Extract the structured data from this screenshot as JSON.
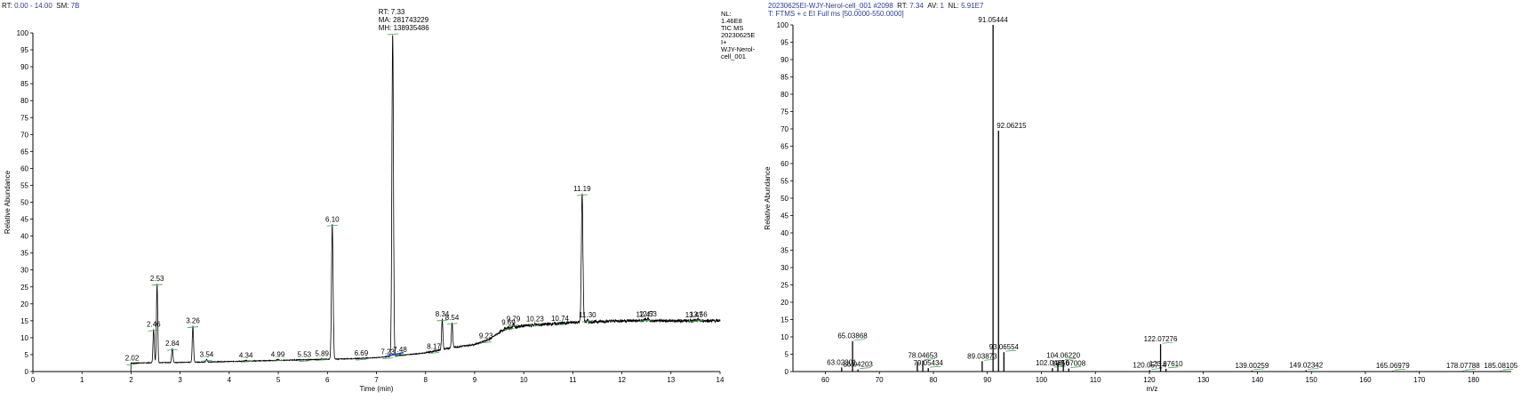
{
  "header_left": {
    "rt_label": "RT:",
    "rt_value": "0.00 - 14.00",
    "sm_label": "SM:",
    "sm_value": "7B"
  },
  "header_right": {
    "line1_file": "20230625EI-WJY-Nerol-cell_001 #2098",
    "line1_rt_label": "RT:",
    "line1_rt": "7.34",
    "line1_av_label": "AV:",
    "line1_av": "1",
    "line1_nl_label": "NL:",
    "line1_nl": "5.91E7",
    "line2": "T: FTMS + c EI Full ms [50.0000-550.0000]"
  },
  "chart_data": [
    {
      "type": "line",
      "name": "tic-chromatogram",
      "xlabel": "Time (min)",
      "ylabel": "Relative Abundance",
      "xlim": [
        0,
        14
      ],
      "ylim": [
        0,
        100
      ],
      "xticks": [
        "0",
        "1",
        "2",
        "3",
        "4",
        "5",
        "6",
        "7",
        "8",
        "9",
        "10",
        "11",
        "12",
        "13",
        "14"
      ],
      "yticks": [
        "0",
        "5",
        "10",
        "15",
        "20",
        "25",
        "30",
        "35",
        "40",
        "45",
        "50",
        "55",
        "60",
        "65",
        "70",
        "75",
        "80",
        "85",
        "90",
        "95",
        "100"
      ],
      "info_block": [
        "NL:",
        "1.46E8",
        "TIC  MS",
        "20230625E",
        "I+",
        "WJY-Nerol-",
        "cell_001"
      ],
      "apex_annotation": [
        "RT: 7.33",
        "MA: 281743229",
        "MH: 138935486"
      ],
      "baseline": [
        [
          2.0,
          2.5
        ],
        [
          3.5,
          2.8
        ],
        [
          5.0,
          3.3
        ],
        [
          6.5,
          3.8
        ],
        [
          7.0,
          4.1
        ],
        [
          8.0,
          5.5
        ],
        [
          8.5,
          7.0
        ],
        [
          9.0,
          8.0
        ],
        [
          9.3,
          9.5
        ],
        [
          9.6,
          12.5
        ],
        [
          10.0,
          13.5
        ],
        [
          11.0,
          14.5
        ],
        [
          12.0,
          15.0
        ],
        [
          14.0,
          15.0
        ]
      ],
      "peaks": [
        {
          "rt": 2.02,
          "label": "2.02",
          "height": 2.5
        },
        {
          "rt": 2.46,
          "label": "2.46",
          "height": 12.5
        },
        {
          "rt": 2.53,
          "label": "2.53",
          "height": 26
        },
        {
          "rt": 2.84,
          "label": "2.84",
          "height": 6.8
        },
        {
          "rt": 3.26,
          "label": "3.26",
          "height": 13.5
        },
        {
          "rt": 3.54,
          "label": "3.54",
          "height": 3.6
        },
        {
          "rt": 4.34,
          "label": "4.34",
          "height": 3.3
        },
        {
          "rt": 4.99,
          "label": "4.99",
          "height": 3.6
        },
        {
          "rt": 5.53,
          "label": "5.53",
          "height": 3.5
        },
        {
          "rt": 5.89,
          "label": "5.89",
          "height": 3.8
        },
        {
          "rt": 6.1,
          "label": "6.10",
          "height": 43.5
        },
        {
          "rt": 6.69,
          "label": "6.69",
          "height": 3.9
        },
        {
          "rt": 7.23,
          "label": "7.23",
          "height": 4.3
        },
        {
          "rt": 7.33,
          "label": "",
          "height": 100
        },
        {
          "rt": 7.48,
          "label": "7.48",
          "height": 5.0
        },
        {
          "rt": 8.17,
          "label": "8.17",
          "height": 5.9
        },
        {
          "rt": 8.34,
          "label": "8.34",
          "height": 15.5
        },
        {
          "rt": 8.54,
          "label": "8.54",
          "height": 14.5
        },
        {
          "rt": 9.23,
          "label": "9.23",
          "height": 9.0
        },
        {
          "rt": 9.69,
          "label": "9.69",
          "height": 13.0
        },
        {
          "rt": 9.79,
          "label": "9.79",
          "height": 14.0
        },
        {
          "rt": 10.23,
          "label": "10.23",
          "height": 14.0
        },
        {
          "rt": 10.74,
          "label": "10.74",
          "height": 14.2
        },
        {
          "rt": 11.19,
          "label": "11.19",
          "height": 52.5
        },
        {
          "rt": 11.3,
          "label": "11.30",
          "height": 15.2
        },
        {
          "rt": 12.47,
          "label": "12.47",
          "height": 15.4
        },
        {
          "rt": 12.53,
          "label": "12.53",
          "height": 15.5
        },
        {
          "rt": 13.47,
          "label": "13.47",
          "height": 15.2
        },
        {
          "rt": 13.56,
          "label": "13.56",
          "height": 15.4
        }
      ]
    },
    {
      "type": "bar",
      "name": "mass-spectrum",
      "xlabel": "m/z",
      "ylabel": "Relative Abundance",
      "xlim": [
        54,
        187
      ],
      "ylim": [
        0,
        100
      ],
      "xticks": [
        "60",
        "70",
        "80",
        "90",
        "100",
        "110",
        "120",
        "130",
        "140",
        "150",
        "160",
        "170",
        "180"
      ],
      "yticks": [
        "0",
        "5",
        "10",
        "15",
        "20",
        "25",
        "30",
        "35",
        "40",
        "45",
        "50",
        "55",
        "60",
        "65",
        "70",
        "75",
        "80",
        "85",
        "90",
        "95",
        "100"
      ],
      "peaks": [
        {
          "mz": 63.02301,
          "label": "63.02301",
          "intensity": 1.2
        },
        {
          "mz": 65.03868,
          "label": "65.03868",
          "intensity": 8.8
        },
        {
          "mz": 66.04203,
          "label": "66.04203",
          "intensity": 0.6
        },
        {
          "mz": 77.03,
          "label": "",
          "intensity": 2.7
        },
        {
          "mz": 78.04653,
          "label": "78.04653",
          "intensity": 3.2
        },
        {
          "mz": 79.05434,
          "label": "79.05434",
          "intensity": 1.0
        },
        {
          "mz": 89.03873,
          "label": "89.03873",
          "intensity": 3.0
        },
        {
          "mz": 91.05444,
          "label": "91.05444",
          "intensity": 100
        },
        {
          "mz": 92.06215,
          "label": "92.06215",
          "intensity": 69.5
        },
        {
          "mz": 93.06554,
          "label": "93.06554",
          "intensity": 5.6
        },
        {
          "mz": 102.04656,
          "label": "102.04656",
          "intensity": 1.0
        },
        {
          "mz": 103.05,
          "label": "",
          "intensity": 2.6
        },
        {
          "mz": 104.0622,
          "label": "104.06220",
          "intensity": 3.2
        },
        {
          "mz": 105.07008,
          "label": "105.07008",
          "intensity": 0.9
        },
        {
          "mz": 120.05714,
          "label": "120.05714",
          "intensity": 0.4
        },
        {
          "mz": 122.07276,
          "label": "122.07276",
          "intensity": 7.9
        },
        {
          "mz": 123.0761,
          "label": "123.07610",
          "intensity": 0.8
        },
        {
          "mz": 139.00259,
          "label": "139.00259",
          "intensity": 0.3
        },
        {
          "mz": 149.02342,
          "label": "149.02342",
          "intensity": 0.4
        },
        {
          "mz": 165.06979,
          "label": "165.06979",
          "intensity": 0.2
        },
        {
          "mz": 178.07788,
          "label": "178.07788",
          "intensity": 0.2
        },
        {
          "mz": 185.08105,
          "label": "185.08105",
          "intensity": 0.2
        }
      ]
    }
  ]
}
